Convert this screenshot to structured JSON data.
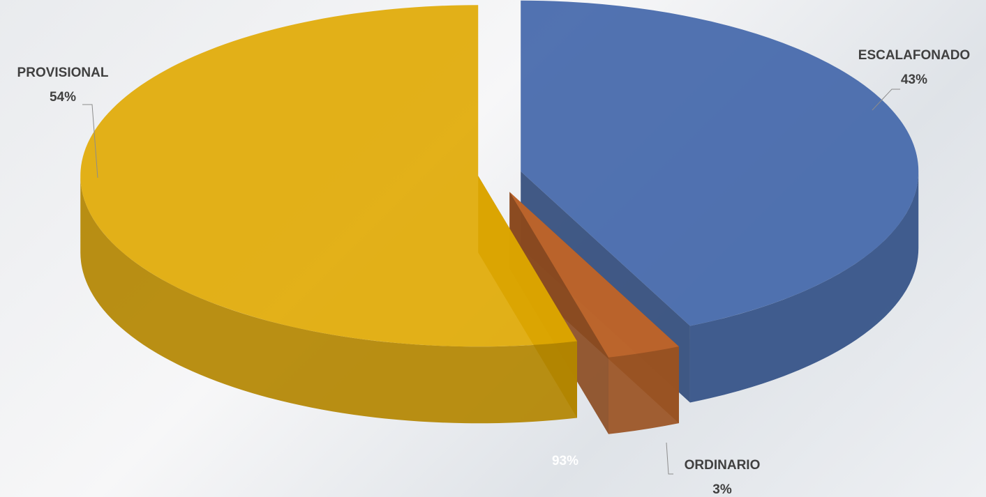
{
  "chart_data": {
    "type": "pie3d",
    "categories": [
      "ESCALAFONADO",
      "ORDINARIO",
      "PROVISIONAL"
    ],
    "values": [
      43,
      3,
      54
    ],
    "value_labels": [
      "43%",
      "3%",
      "54%"
    ],
    "colors": [
      "#3f64a8",
      "#c0662b",
      "#e0a800"
    ],
    "annotations": [
      "93%"
    ]
  }
}
